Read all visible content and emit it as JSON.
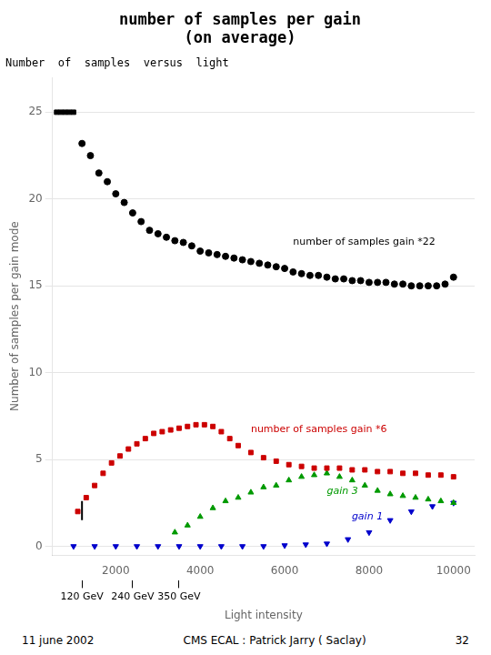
{
  "chart_data": {
    "type": "scatter",
    "title": "number of samples per gain\n(on average)",
    "subtitle": "Number  of  samples  versus  light",
    "xlabel": "Light intensity",
    "ylabel": "Number of samples per gain mode",
    "xlim": [
      500,
      10500
    ],
    "ylim": [
      -0.5,
      27
    ],
    "xticks": [
      2000,
      4000,
      6000,
      8000,
      10000
    ],
    "yticks": [
      0,
      5,
      10,
      15,
      20,
      25
    ],
    "x2ticks": [
      {
        "value": 1200,
        "label": "120 GeV"
      },
      {
        "value": 2400,
        "label": "240 GeV"
      },
      {
        "value": 3500,
        "label": "350 GeV"
      }
    ],
    "grid": "y",
    "series": [
      {
        "name": "number of samples gain *22",
        "color": "#000000",
        "x": [
          600,
          700,
          800,
          900,
          1000,
          1200,
          1400,
          1600,
          1800,
          2000,
          2200,
          2400,
          2600,
          2800,
          3000,
          3200,
          3400,
          3600,
          3800,
          4000,
          4200,
          4400,
          4600,
          4800,
          5000,
          5200,
          5400,
          5600,
          5800,
          6000,
          6200,
          6400,
          6600,
          6800,
          7000,
          7200,
          7400,
          7600,
          7800,
          8000,
          8200,
          8400,
          8600,
          8800,
          9000,
          9200,
          9400,
          9600,
          9800,
          10000
        ],
        "values": [
          25,
          25,
          25,
          25,
          25,
          23.2,
          22.5,
          21.5,
          21.0,
          20.3,
          19.8,
          19.2,
          18.7,
          18.2,
          18.0,
          17.8,
          17.6,
          17.5,
          17.3,
          17.0,
          16.9,
          16.8,
          16.7,
          16.6,
          16.5,
          16.4,
          16.3,
          16.2,
          16.1,
          16.0,
          15.8,
          15.7,
          15.6,
          15.6,
          15.5,
          15.4,
          15.4,
          15.3,
          15.3,
          15.2,
          15.2,
          15.2,
          15.1,
          15.1,
          15.0,
          15.0,
          15.0,
          15.0,
          15.1,
          15.5
        ],
        "markers": [
          "square",
          "square",
          "square",
          "square",
          "square",
          "circle",
          "circle",
          "circle",
          "circle",
          "circle",
          "circle",
          "circle",
          "circle",
          "circle",
          "circle",
          "circle",
          "circle",
          "circle",
          "circle",
          "circle",
          "circle",
          "circle",
          "circle",
          "circle",
          "circle",
          "circle",
          "circle",
          "circle",
          "circle",
          "circle",
          "circle",
          "circle",
          "circle",
          "circle",
          "circle",
          "circle",
          "circle",
          "circle",
          "circle",
          "circle",
          "circle",
          "circle",
          "circle",
          "circle",
          "circle",
          "circle",
          "circle",
          "circle",
          "circle",
          "circle"
        ]
      },
      {
        "name": "number of samples gain *6",
        "color": "#cc0000",
        "marker": "square",
        "x": [
          1100,
          1300,
          1500,
          1700,
          1900,
          2100,
          2300,
          2500,
          2700,
          2900,
          3100,
          3300,
          3500,
          3700,
          3900,
          4100,
          4300,
          4500,
          4700,
          4900,
          5200,
          5500,
          5800,
          6100,
          6400,
          6700,
          7000,
          7300,
          7600,
          7900,
          8200,
          8500,
          8800,
          9100,
          9400,
          9700,
          10000
        ],
        "values": [
          2.0,
          2.8,
          3.5,
          4.2,
          4.8,
          5.2,
          5.6,
          5.9,
          6.2,
          6.5,
          6.6,
          6.7,
          6.8,
          6.9,
          7.0,
          7.0,
          6.9,
          6.6,
          6.2,
          5.8,
          5.4,
          5.1,
          4.9,
          4.7,
          4.6,
          4.5,
          4.5,
          4.5,
          4.4,
          4.4,
          4.3,
          4.3,
          4.2,
          4.2,
          4.1,
          4.1,
          4.0
        ]
      },
      {
        "name": "gain 3",
        "color": "#009900",
        "marker": "triangle",
        "x": [
          3400,
          3700,
          4000,
          4300,
          4600,
          4900,
          5200,
          5500,
          5800,
          6100,
          6400,
          6700,
          7000,
          7300,
          7600,
          7900,
          8200,
          8500,
          8800,
          9100,
          9400,
          9700,
          10000
        ],
        "values": [
          0.8,
          1.2,
          1.7,
          2.2,
          2.6,
          2.8,
          3.1,
          3.4,
          3.5,
          3.8,
          4.0,
          4.1,
          4.2,
          4.0,
          3.8,
          3.5,
          3.2,
          3.0,
          2.9,
          2.8,
          2.7,
          2.6,
          2.5
        ]
      },
      {
        "name": "gain 1",
        "color": "#0000cc",
        "marker": "triangle_down",
        "x": [
          1000,
          1500,
          2000,
          2500,
          3000,
          3500,
          4000,
          4500,
          5000,
          5500,
          6000,
          6500,
          7000,
          7500,
          8000,
          8500,
          9000,
          9500,
          10000
        ],
        "values": [
          0.0,
          0.0,
          0.0,
          0.0,
          0.0,
          0.0,
          0.0,
          0.0,
          0.0,
          0.0,
          0.05,
          0.1,
          0.15,
          0.4,
          0.8,
          1.5,
          2.0,
          2.3,
          2.5
        ]
      }
    ],
    "segment": {
      "x": [
        1200,
        1200
      ],
      "y": [
        1.5,
        2.6
      ],
      "color": "#000000"
    },
    "footer_left": "11 june 2002",
    "footer_center": "CMS ECAL : Patrick Jarry ( Saclay)",
    "footer_right": "32"
  }
}
